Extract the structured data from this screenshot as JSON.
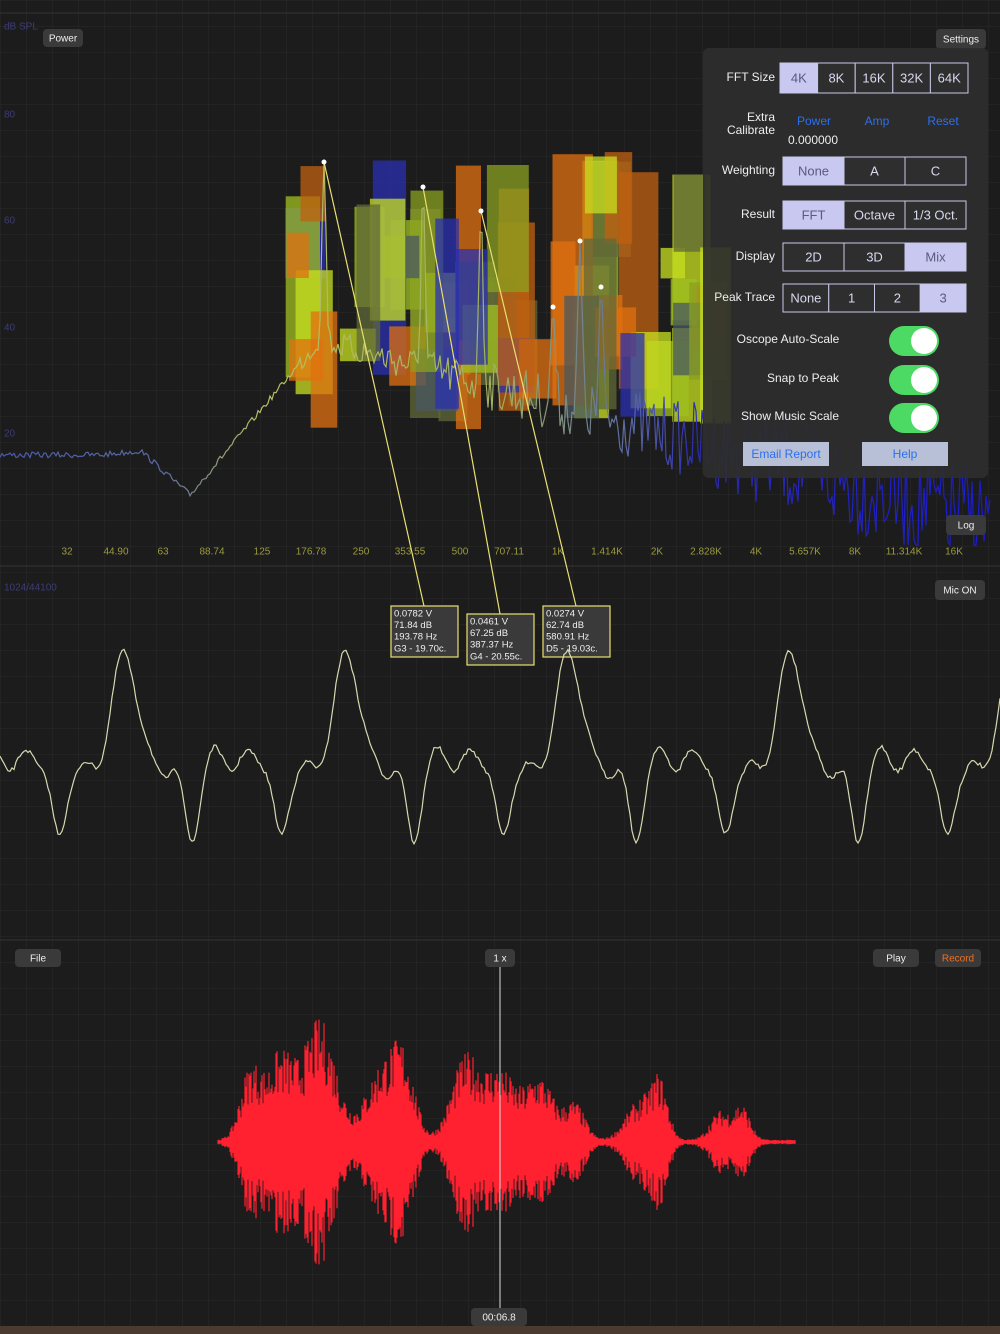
{
  "spectrum": {
    "axis_title": "dB SPL",
    "y_labels": [
      "80",
      "60",
      "40",
      "20"
    ],
    "x_labels": [
      "32",
      "44.90",
      "63",
      "88.74",
      "125",
      "176.78",
      "250",
      "353.55",
      "500",
      "707.11",
      "1K",
      "1.414K",
      "2K",
      "2.828K",
      "4K",
      "5.657K",
      "8K",
      "11.314K",
      "16K"
    ],
    "power_button": "Power",
    "settings_button": "Settings",
    "log_button": "Log"
  },
  "settings_panel": {
    "fft_size": {
      "label": "FFT Size",
      "options": [
        "4K",
        "8K",
        "16K",
        "32K",
        "64K"
      ],
      "selected": 0
    },
    "extra_calibrate": {
      "label_lines": [
        "Extra",
        "Calibrate"
      ],
      "buttons": [
        "Power",
        "Amp",
        "Reset"
      ],
      "value": "0.000000"
    },
    "weighting": {
      "label": "Weighting",
      "options": [
        "None",
        "A",
        "C"
      ],
      "selected": 0
    },
    "result": {
      "label": "Result",
      "options": [
        "FFT",
        "Octave",
        "1/3 Oct."
      ],
      "selected": 0
    },
    "display": {
      "label": "Display",
      "options": [
        "2D",
        "3D",
        "Mix"
      ],
      "selected": 2
    },
    "peak_trace": {
      "label": "Peak Trace",
      "options": [
        "None",
        "1",
        "2",
        "3"
      ],
      "selected": 3
    },
    "toggles": [
      {
        "label": "Oscope Auto-Scale",
        "on": true
      },
      {
        "label": "Snap to Peak",
        "on": true
      },
      {
        "label": "Show Music Scale",
        "on": true
      }
    ],
    "email_report": "Email Report",
    "help": "Help"
  },
  "peaks": [
    {
      "lines": [
        "0.0782 V",
        "71.84 dB",
        "193.78 Hz",
        "G3 - 19.70c."
      ]
    },
    {
      "lines": [
        "0.0461 V",
        "67.25 dB",
        "387.37 Hz",
        "G4 - 20.55c."
      ]
    },
    {
      "lines": [
        "0.0274 V",
        "62.74 dB",
        "580.91 Hz",
        "D5 - 19.03c."
      ]
    }
  ],
  "oscilloscope": {
    "sample_info": "1024/44100",
    "mic_button": "Mic ON"
  },
  "recorder": {
    "file_button": "File",
    "zoom": "1 x",
    "play_button": "Play",
    "record_button": "Record",
    "time": "00:06.8"
  }
}
